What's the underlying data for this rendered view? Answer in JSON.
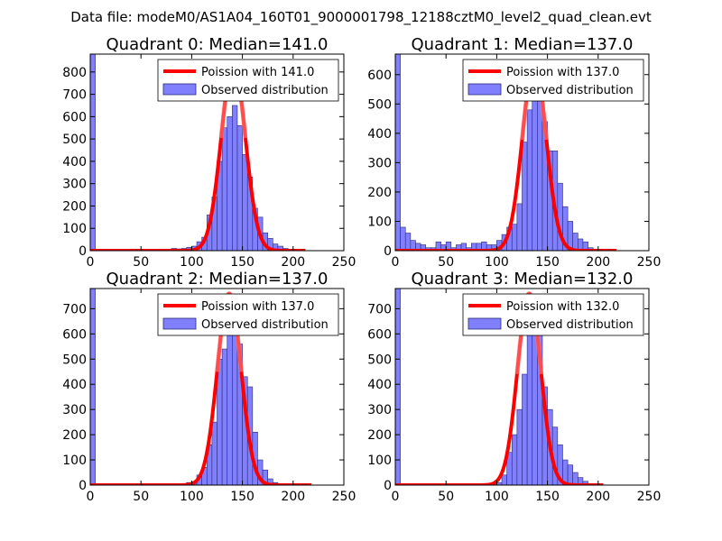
{
  "figure": {
    "suptitle": "Data file: modeM0/AS1A04_160T01_9000001798_12188cztM0_level2_quad_clean.evt"
  },
  "colors": {
    "bar_fill": "#8080ff",
    "bar_edge": "#2a2a7a",
    "poisson": "#ff0000",
    "poisson_overlap": "#ff8080"
  },
  "legend": {
    "observed_label": "Observed distribution",
    "position": "top-right"
  },
  "chart_data": [
    {
      "type": "bar",
      "title": "Quadrant 0: Median=141.0",
      "median": 141.0,
      "poisson_label": "Poission with 141.0",
      "xlim": [
        0,
        250
      ],
      "ylim": [
        0,
        880
      ],
      "xticks": [
        0,
        50,
        100,
        150,
        200,
        250
      ],
      "yticks": [
        0,
        100,
        200,
        300,
        400,
        500,
        600,
        700,
        800
      ],
      "bin_width": 5,
      "bars": [
        {
          "x": 0,
          "y": 880
        },
        {
          "x": 5,
          "y": 3
        },
        {
          "x": 10,
          "y": 2
        },
        {
          "x": 15,
          "y": 2
        },
        {
          "x": 20,
          "y": 2
        },
        {
          "x": 25,
          "y": 2
        },
        {
          "x": 30,
          "y": 2
        },
        {
          "x": 35,
          "y": 2
        },
        {
          "x": 40,
          "y": 2
        },
        {
          "x": 45,
          "y": 2
        },
        {
          "x": 50,
          "y": 2
        },
        {
          "x": 55,
          "y": 2
        },
        {
          "x": 60,
          "y": 2
        },
        {
          "x": 65,
          "y": 2
        },
        {
          "x": 70,
          "y": 2
        },
        {
          "x": 75,
          "y": 3
        },
        {
          "x": 80,
          "y": 10
        },
        {
          "x": 85,
          "y": 8
        },
        {
          "x": 90,
          "y": 10
        },
        {
          "x": 95,
          "y": 15
        },
        {
          "x": 100,
          "y": 20
        },
        {
          "x": 105,
          "y": 40
        },
        {
          "x": 110,
          "y": 60
        },
        {
          "x": 115,
          "y": 160
        },
        {
          "x": 120,
          "y": 240
        },
        {
          "x": 125,
          "y": 400
        },
        {
          "x": 130,
          "y": 550
        },
        {
          "x": 135,
          "y": 600
        },
        {
          "x": 140,
          "y": 650
        },
        {
          "x": 145,
          "y": 560
        },
        {
          "x": 150,
          "y": 430
        },
        {
          "x": 155,
          "y": 330
        },
        {
          "x": 160,
          "y": 190
        },
        {
          "x": 165,
          "y": 150
        },
        {
          "x": 170,
          "y": 80
        },
        {
          "x": 175,
          "y": 55
        },
        {
          "x": 180,
          "y": 30
        },
        {
          "x": 185,
          "y": 20
        },
        {
          "x": 190,
          "y": 10
        },
        {
          "x": 195,
          "y": 5
        },
        {
          "x": 200,
          "y": 3
        },
        {
          "x": 205,
          "y": 2
        }
      ],
      "poisson": {
        "mean": 141.0,
        "peak": 840,
        "xmin": 0,
        "xmax": 212
      }
    },
    {
      "type": "bar",
      "title": "Quadrant 1: Median=137.0",
      "median": 137.0,
      "poisson_label": "Poission with 137.0",
      "xlim": [
        0,
        250
      ],
      "ylim": [
        0,
        670
      ],
      "xticks": [
        0,
        50,
        100,
        150,
        200,
        250
      ],
      "yticks": [
        0,
        100,
        200,
        300,
        400,
        500,
        600
      ],
      "bin_width": 5,
      "bars": [
        {
          "x": 0,
          "y": 670
        },
        {
          "x": 5,
          "y": 80
        },
        {
          "x": 10,
          "y": 60
        },
        {
          "x": 15,
          "y": 35
        },
        {
          "x": 20,
          "y": 25
        },
        {
          "x": 25,
          "y": 20
        },
        {
          "x": 30,
          "y": 10
        },
        {
          "x": 35,
          "y": 10
        },
        {
          "x": 40,
          "y": 30
        },
        {
          "x": 45,
          "y": 20
        },
        {
          "x": 50,
          "y": 30
        },
        {
          "x": 55,
          "y": 10
        },
        {
          "x": 60,
          "y": 20
        },
        {
          "x": 65,
          "y": 25
        },
        {
          "x": 70,
          "y": 10
        },
        {
          "x": 75,
          "y": 25
        },
        {
          "x": 80,
          "y": 25
        },
        {
          "x": 85,
          "y": 30
        },
        {
          "x": 90,
          "y": 20
        },
        {
          "x": 95,
          "y": 20
        },
        {
          "x": 100,
          "y": 35
        },
        {
          "x": 105,
          "y": 55
        },
        {
          "x": 110,
          "y": 80
        },
        {
          "x": 115,
          "y": 90
        },
        {
          "x": 120,
          "y": 160
        },
        {
          "x": 125,
          "y": 370
        },
        {
          "x": 130,
          "y": 480
        },
        {
          "x": 135,
          "y": 510
        },
        {
          "x": 140,
          "y": 510
        },
        {
          "x": 145,
          "y": 440
        },
        {
          "x": 150,
          "y": 340
        },
        {
          "x": 155,
          "y": 340
        },
        {
          "x": 160,
          "y": 230
        },
        {
          "x": 165,
          "y": 150
        },
        {
          "x": 170,
          "y": 100
        },
        {
          "x": 175,
          "y": 60
        },
        {
          "x": 180,
          "y": 40
        },
        {
          "x": 185,
          "y": 30
        },
        {
          "x": 190,
          "y": 10
        },
        {
          "x": 195,
          "y": 5
        }
      ],
      "poisson": {
        "mean": 137.0,
        "peak": 640,
        "xmin": 0,
        "xmax": 218
      }
    },
    {
      "type": "bar",
      "title": "Quadrant 2: Median=137.0",
      "median": 137.0,
      "poisson_label": "Poission with 137.0",
      "xlim": [
        0,
        250
      ],
      "ylim": [
        0,
        780
      ],
      "xticks": [
        0,
        50,
        100,
        150,
        200,
        250
      ],
      "yticks": [
        0,
        100,
        200,
        300,
        400,
        500,
        600,
        700
      ],
      "bin_width": 5,
      "bars": [
        {
          "x": 0,
          "y": 780
        },
        {
          "x": 5,
          "y": 2
        },
        {
          "x": 10,
          "y": 2
        },
        {
          "x": 15,
          "y": 2
        },
        {
          "x": 20,
          "y": 2
        },
        {
          "x": 25,
          "y": 2
        },
        {
          "x": 30,
          "y": 2
        },
        {
          "x": 35,
          "y": 2
        },
        {
          "x": 40,
          "y": 2
        },
        {
          "x": 45,
          "y": 2
        },
        {
          "x": 50,
          "y": 2
        },
        {
          "x": 55,
          "y": 2
        },
        {
          "x": 60,
          "y": 2
        },
        {
          "x": 65,
          "y": 2
        },
        {
          "x": 70,
          "y": 3
        },
        {
          "x": 75,
          "y": 3
        },
        {
          "x": 80,
          "y": 3
        },
        {
          "x": 85,
          "y": 5
        },
        {
          "x": 90,
          "y": 5
        },
        {
          "x": 95,
          "y": 10
        },
        {
          "x": 100,
          "y": 10
        },
        {
          "x": 105,
          "y": 40
        },
        {
          "x": 110,
          "y": 70
        },
        {
          "x": 115,
          "y": 160
        },
        {
          "x": 120,
          "y": 250
        },
        {
          "x": 125,
          "y": 500
        },
        {
          "x": 130,
          "y": 540
        },
        {
          "x": 135,
          "y": 640
        },
        {
          "x": 140,
          "y": 620
        },
        {
          "x": 145,
          "y": 560
        },
        {
          "x": 150,
          "y": 430
        },
        {
          "x": 155,
          "y": 390
        },
        {
          "x": 160,
          "y": 210
        },
        {
          "x": 165,
          "y": 100
        },
        {
          "x": 170,
          "y": 60
        },
        {
          "x": 175,
          "y": 25
        },
        {
          "x": 180,
          "y": 10
        },
        {
          "x": 185,
          "y": 5
        },
        {
          "x": 190,
          "y": 3
        },
        {
          "x": 195,
          "y": 2
        }
      ],
      "poisson": {
        "mean": 137.0,
        "peak": 760,
        "xmin": 0,
        "xmax": 218
      }
    },
    {
      "type": "bar",
      "title": "Quadrant 3: Median=132.0",
      "median": 132.0,
      "poisson_label": "Poission with 132.0",
      "xlim": [
        0,
        250
      ],
      "ylim": [
        0,
        780
      ],
      "xticks": [
        0,
        50,
        100,
        150,
        200,
        250
      ],
      "yticks": [
        0,
        100,
        200,
        300,
        400,
        500,
        600,
        700
      ],
      "bin_width": 5,
      "bars": [
        {
          "x": 0,
          "y": 780
        },
        {
          "x": 5,
          "y": 2
        },
        {
          "x": 10,
          "y": 2
        },
        {
          "x": 15,
          "y": 2
        },
        {
          "x": 20,
          "y": 2
        },
        {
          "x": 25,
          "y": 2
        },
        {
          "x": 30,
          "y": 2
        },
        {
          "x": 35,
          "y": 2
        },
        {
          "x": 40,
          "y": 2
        },
        {
          "x": 45,
          "y": 2
        },
        {
          "x": 50,
          "y": 2
        },
        {
          "x": 55,
          "y": 2
        },
        {
          "x": 60,
          "y": 2
        },
        {
          "x": 65,
          "y": 2
        },
        {
          "x": 70,
          "y": 3
        },
        {
          "x": 75,
          "y": 3
        },
        {
          "x": 80,
          "y": 3
        },
        {
          "x": 85,
          "y": 5
        },
        {
          "x": 90,
          "y": 5
        },
        {
          "x": 95,
          "y": 10
        },
        {
          "x": 100,
          "y": 10
        },
        {
          "x": 105,
          "y": 40
        },
        {
          "x": 110,
          "y": 130
        },
        {
          "x": 115,
          "y": 200
        },
        {
          "x": 120,
          "y": 300
        },
        {
          "x": 125,
          "y": 440
        },
        {
          "x": 130,
          "y": 610
        },
        {
          "x": 135,
          "y": 700
        },
        {
          "x": 140,
          "y": 620
        },
        {
          "x": 145,
          "y": 390
        },
        {
          "x": 150,
          "y": 300
        },
        {
          "x": 155,
          "y": 230
        },
        {
          "x": 160,
          "y": 160
        },
        {
          "x": 165,
          "y": 100
        },
        {
          "x": 170,
          "y": 80
        },
        {
          "x": 175,
          "y": 50
        },
        {
          "x": 180,
          "y": 30
        },
        {
          "x": 185,
          "y": 15
        },
        {
          "x": 190,
          "y": 5
        },
        {
          "x": 195,
          "y": 2
        }
      ],
      "poisson": {
        "mean": 132.0,
        "peak": 760,
        "xmin": 0,
        "xmax": 205
      }
    }
  ]
}
